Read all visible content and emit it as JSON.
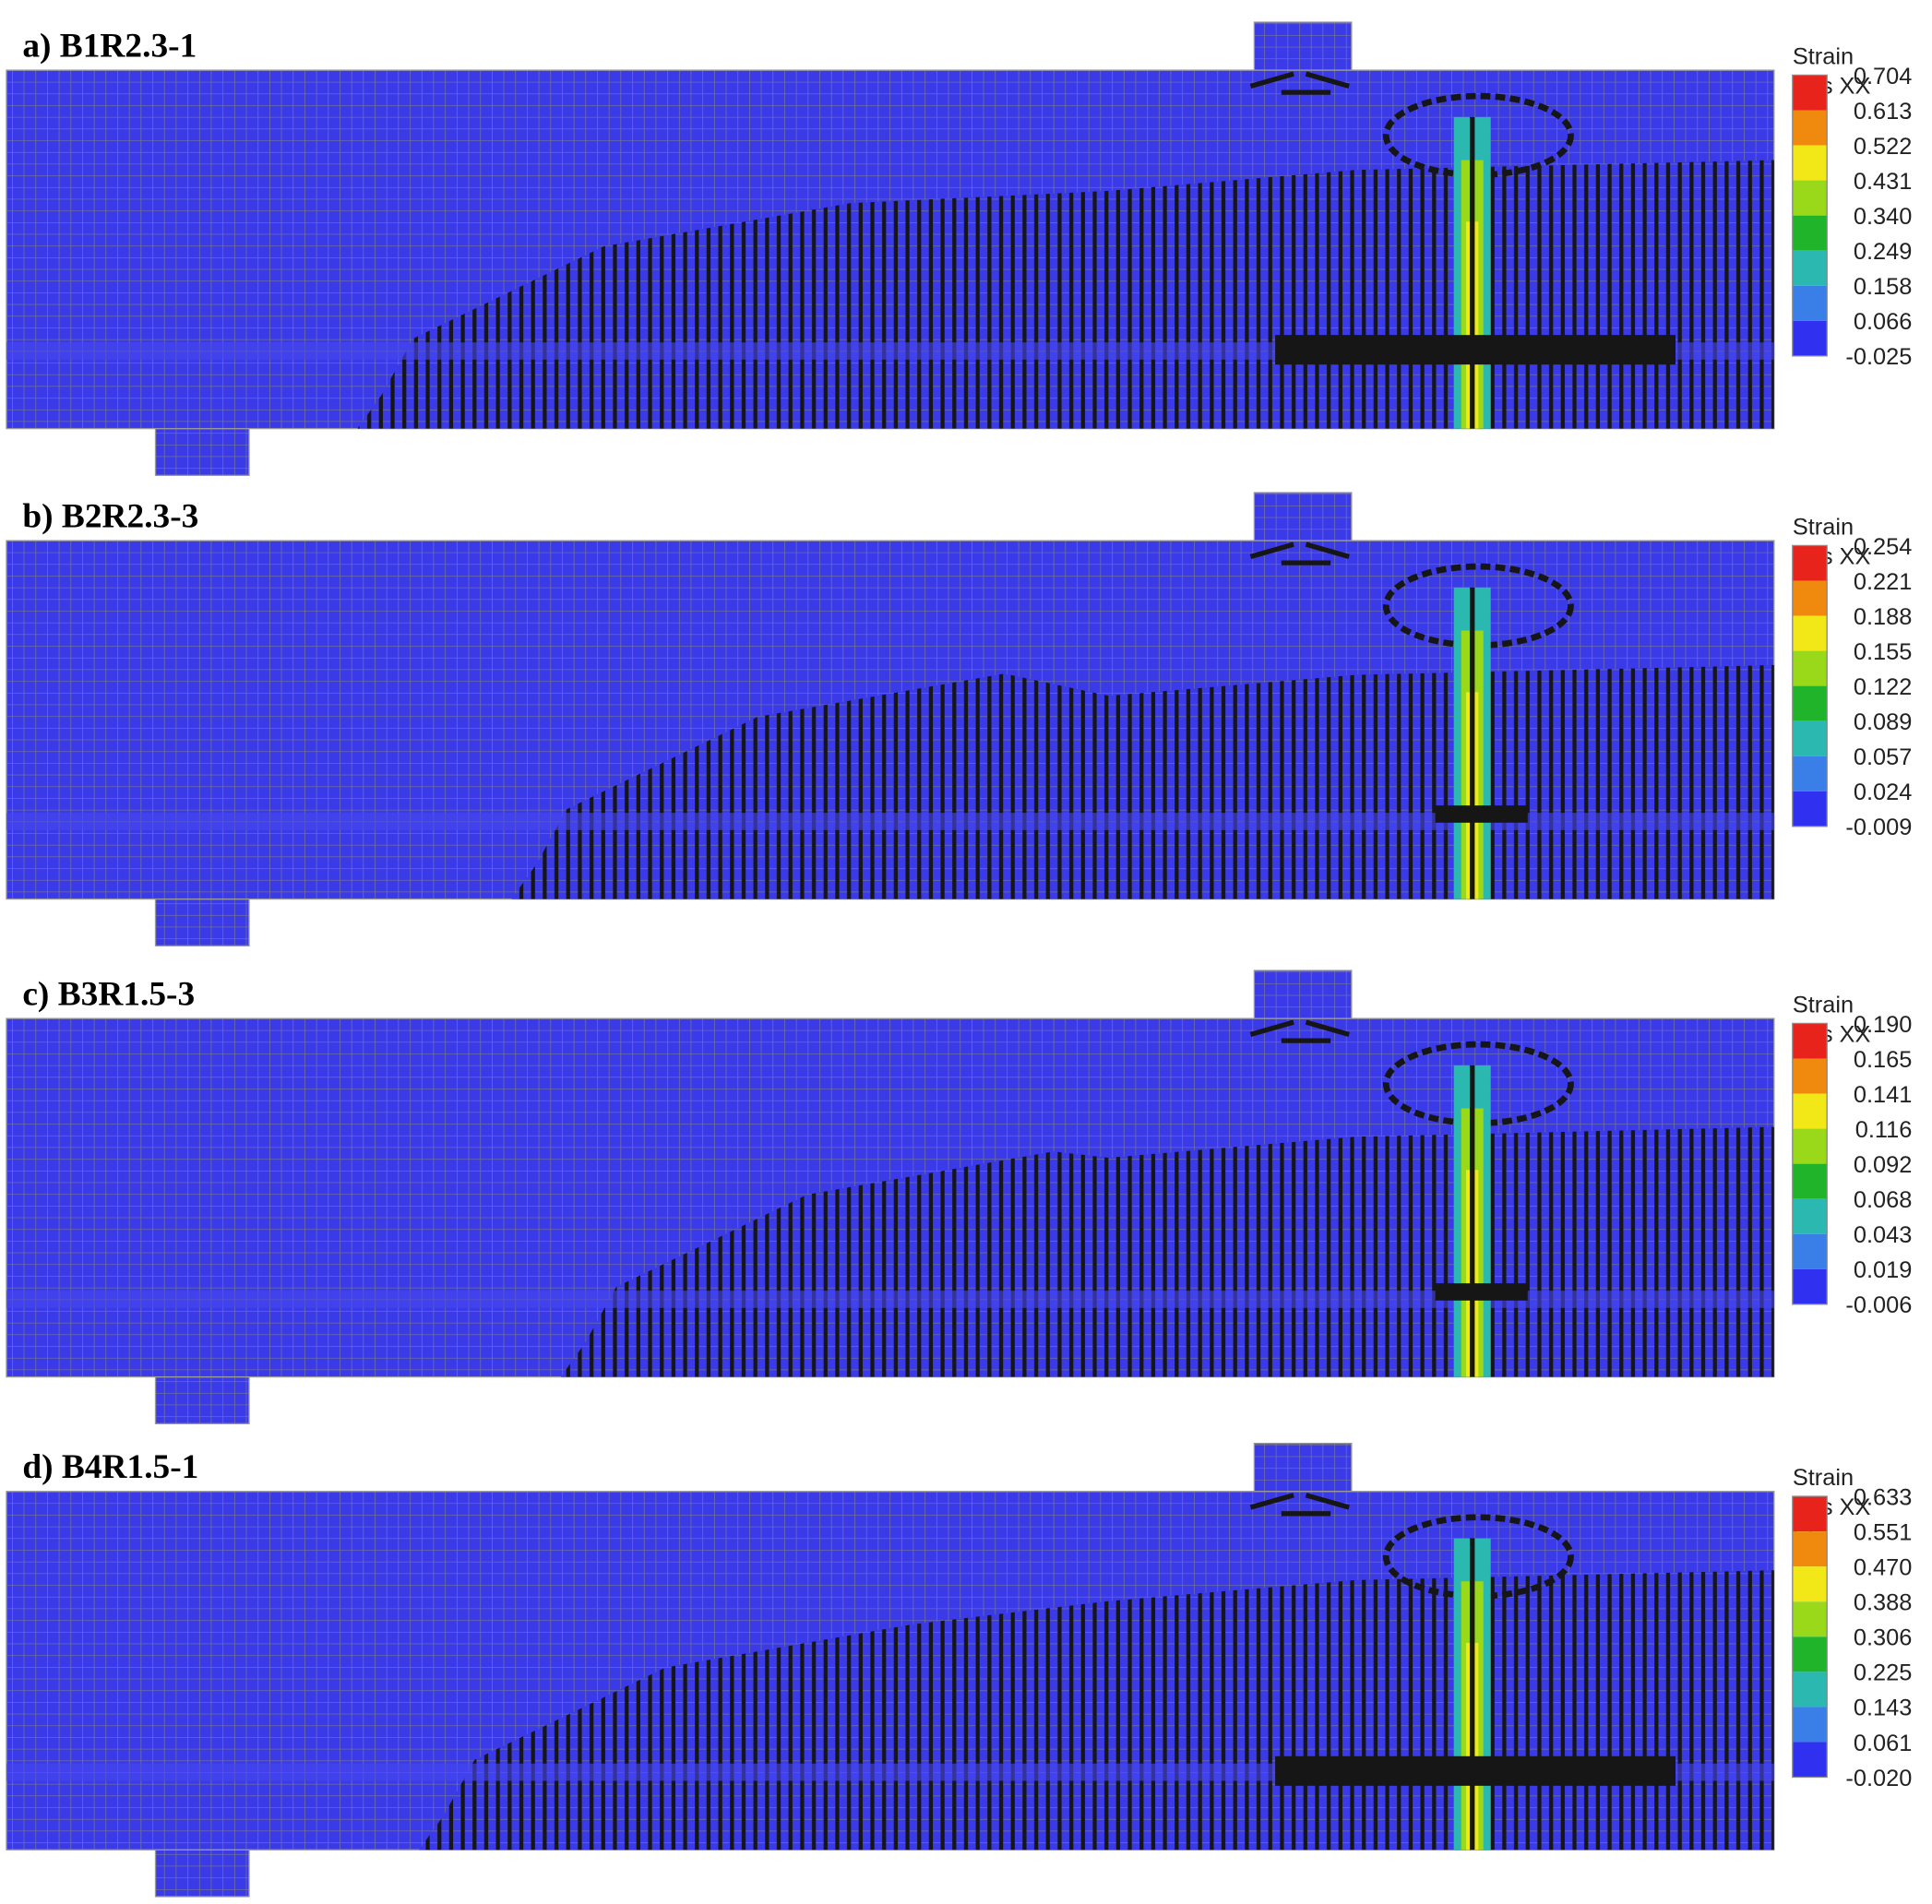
{
  "panels": [
    {
      "label": "a) B1R2.3-1",
      "legend": {
        "title": [
          "Strain",
          "Eps XX",
          "[-]"
        ],
        "values": [
          "0.704",
          "0.613",
          "0.522",
          "0.431",
          "0.340",
          "0.249",
          "0.158",
          "0.066",
          "-0.025"
        ]
      }
    },
    {
      "label": "b) B2R2.3-3",
      "legend": {
        "title": [
          "Strain",
          "Eps XX",
          "[-]"
        ],
        "values": [
          "0.254",
          "0.221",
          "0.188",
          "0.155",
          "0.122",
          "0.089",
          "0.057",
          "0.024",
          "-0.009"
        ]
      }
    },
    {
      "label": "c) B3R1.5-3",
      "legend": {
        "title": [
          "Strain",
          "Eps XX",
          "[-]"
        ],
        "values": [
          "0.190",
          "0.165",
          "0.141",
          "0.116",
          "0.092",
          "0.068",
          "0.043",
          "0.019",
          "-0.006"
        ]
      }
    },
    {
      "label": "d) B4R1.5-1",
      "legend": {
        "title": [
          "Strain",
          "Eps XX",
          "[-]"
        ],
        "values": [
          "0.633",
          "0.551",
          "0.470",
          "0.388",
          "0.306",
          "0.225",
          "0.143",
          "0.061",
          "-0.020"
        ]
      }
    }
  ]
}
